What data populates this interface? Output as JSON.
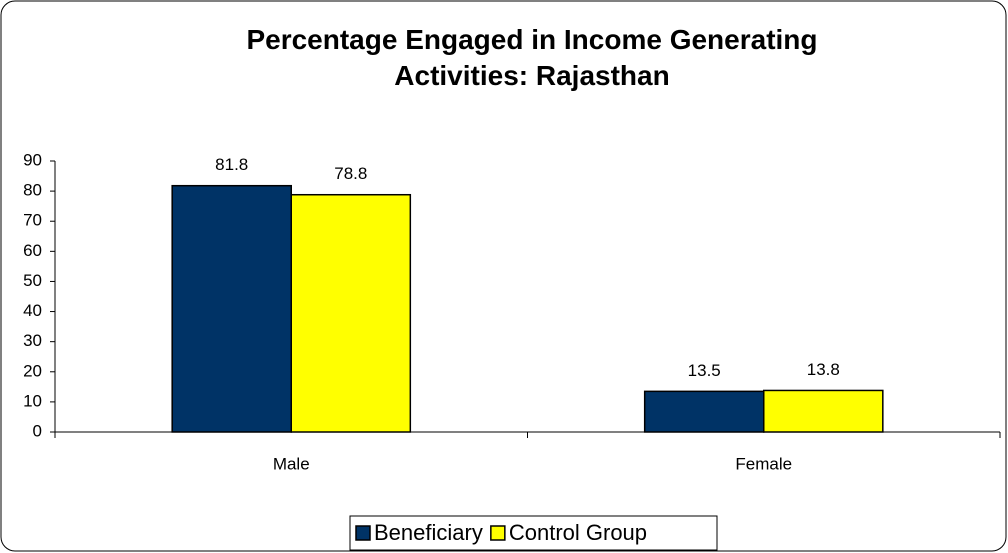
{
  "chart_data": {
    "type": "bar",
    "title": "Percentage Engaged in Income Generating Activities: Rajasthan",
    "categories": [
      "Male",
      "Female"
    ],
    "series": [
      {
        "name": "Beneficiary",
        "color": "#003366",
        "values": [
          81.8,
          13.5
        ]
      },
      {
        "name": "Control Group",
        "color": "#ffff00",
        "values": [
          78.8,
          13.8
        ]
      }
    ],
    "ylim": [
      0,
      90
    ],
    "yticks": [
      0,
      10,
      20,
      30,
      40,
      50,
      60,
      70,
      80,
      90
    ],
    "legend": "bottom"
  }
}
